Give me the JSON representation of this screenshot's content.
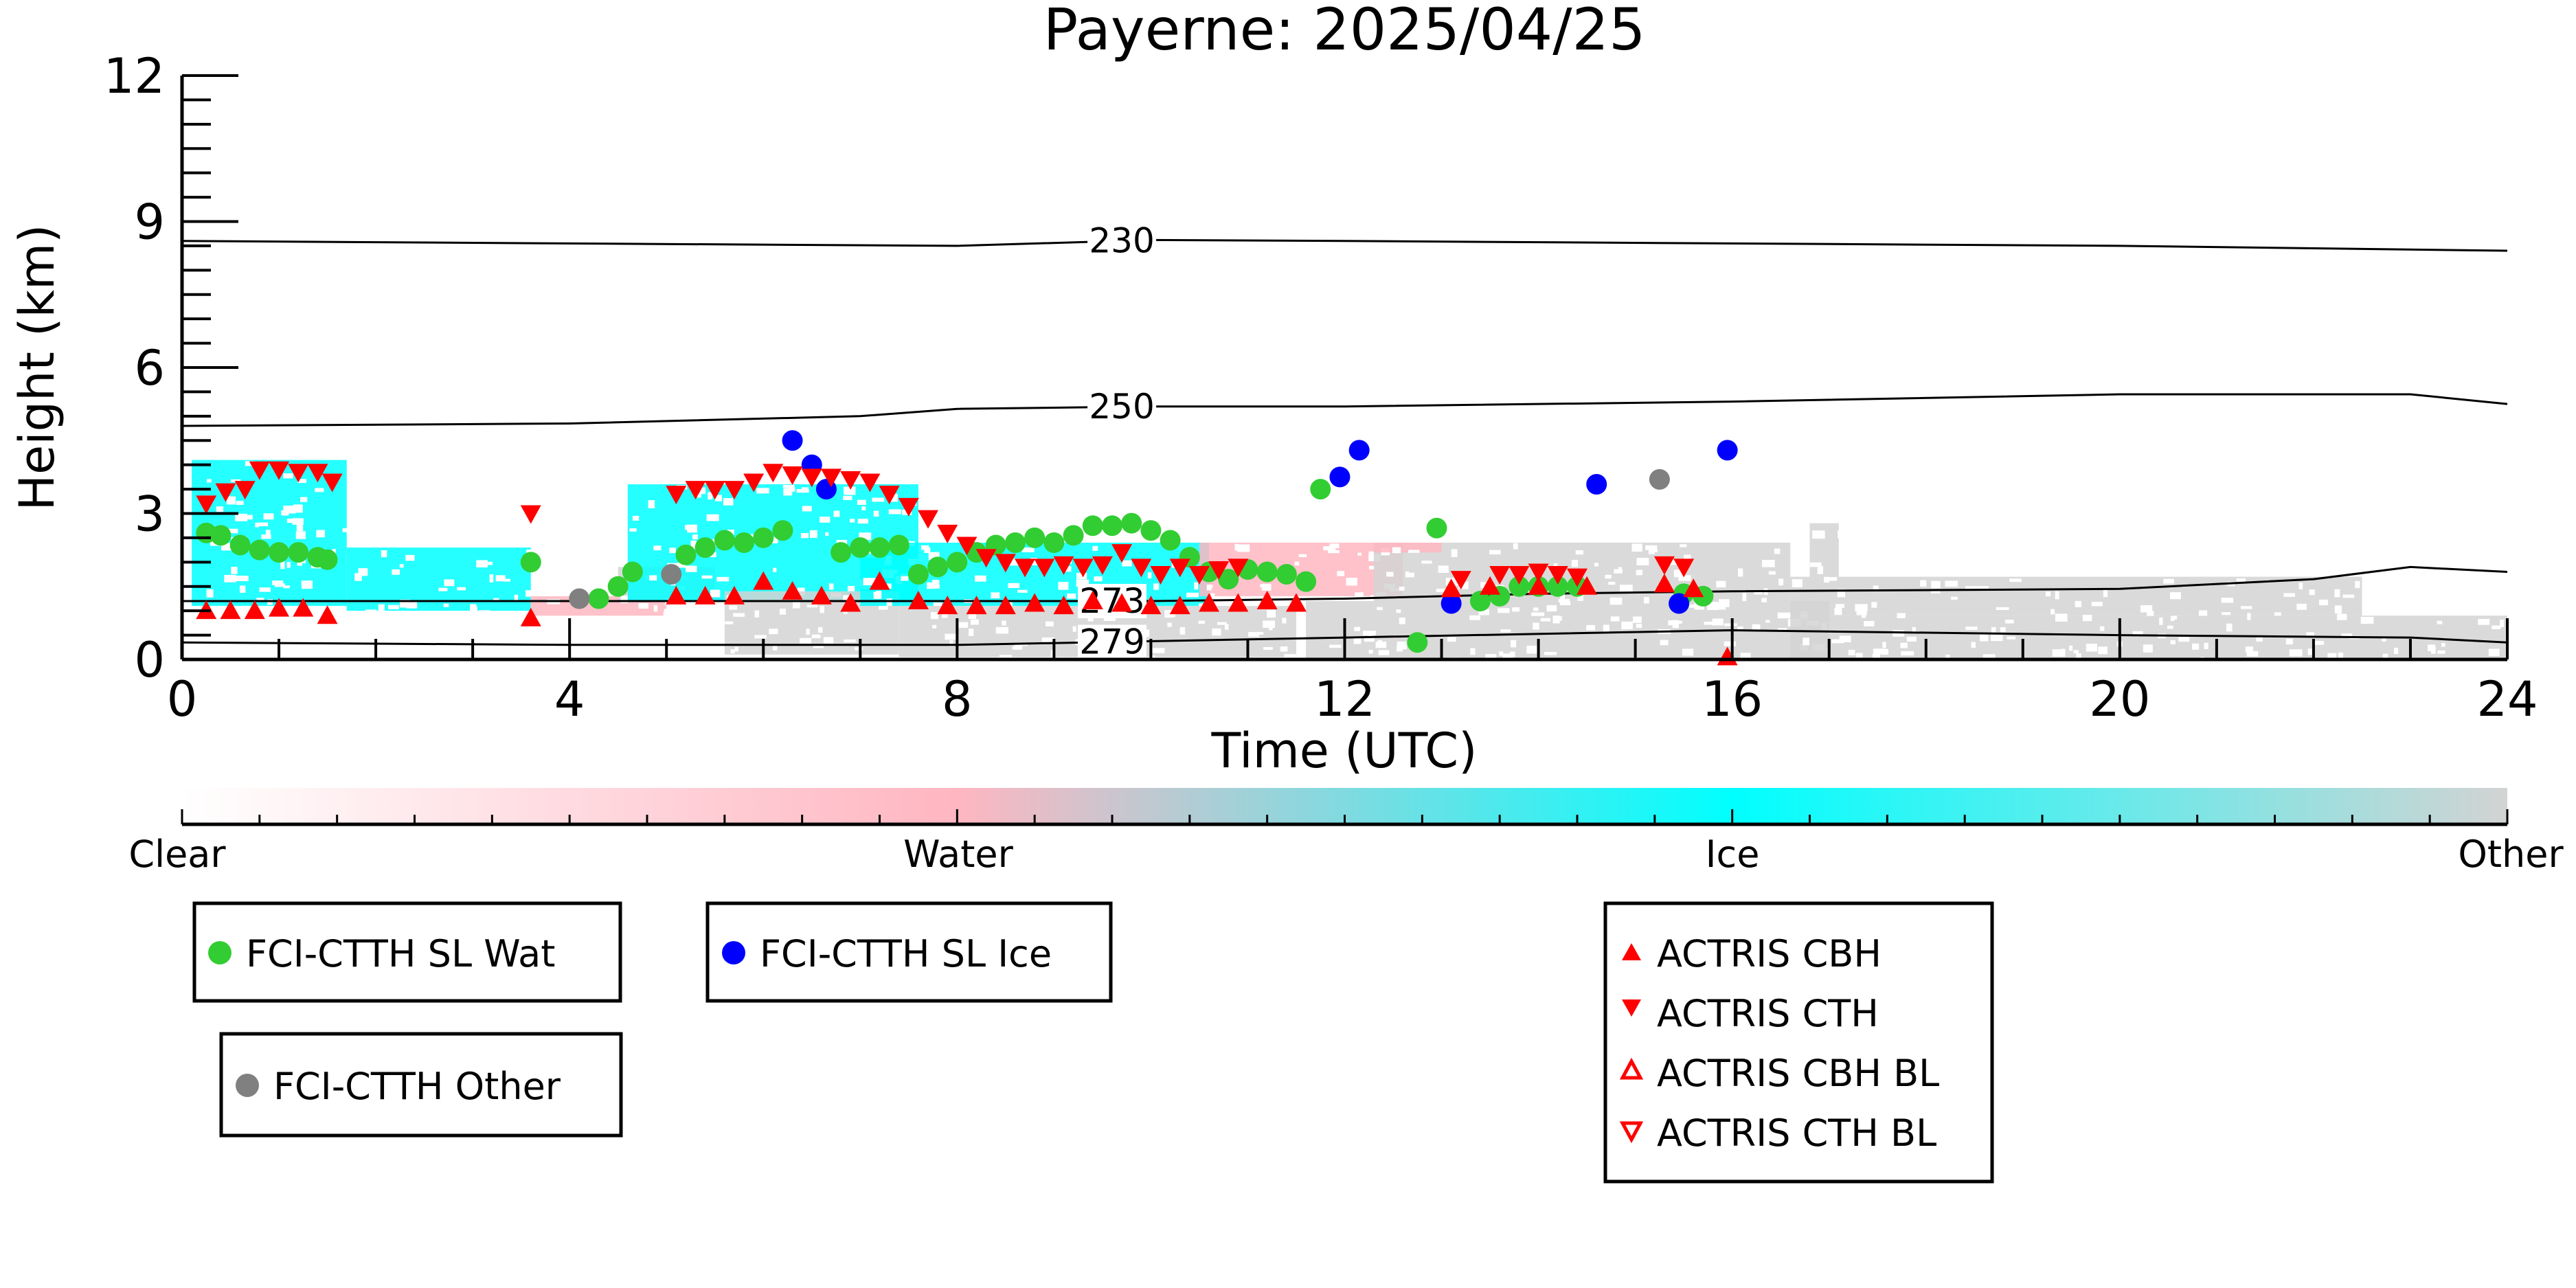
{
  "chart_data": {
    "type": "scatter",
    "title": "Payerne: 2025/04/25",
    "xlabel": "Time (UTC)",
    "ylabel": "Height (km)",
    "xlim": [
      0,
      24
    ],
    "ylim": [
      0,
      12
    ],
    "xticks": [
      0,
      4,
      8,
      12,
      16,
      20,
      24
    ],
    "yticks": [
      0,
      3,
      6,
      9,
      12
    ],
    "colors": {
      "clear": "#ffffff",
      "water": "#ffb6c1",
      "ice": "#00ffff",
      "other": "#d3d3d3",
      "wat_marker": "#32cd32",
      "ice_marker": "#0000ff",
      "other_marker": "#808080",
      "actris": "#ff0000"
    },
    "colorbar": {
      "labels": [
        "Clear",
        "Water",
        "Ice",
        "Other"
      ]
    },
    "isotherms": [
      {
        "label": "230",
        "label_x": 9.7,
        "points": [
          [
            0,
            8.6
          ],
          [
            4,
            8.55
          ],
          [
            8,
            8.5
          ],
          [
            10,
            8.62
          ],
          [
            12,
            8.6
          ],
          [
            16,
            8.55
          ],
          [
            20,
            8.5
          ],
          [
            24,
            8.4
          ]
        ]
      },
      {
        "label": "250",
        "label_x": 9.7,
        "points": [
          [
            0,
            4.8
          ],
          [
            4,
            4.85
          ],
          [
            7,
            5.0
          ],
          [
            8,
            5.15
          ],
          [
            10,
            5.2
          ],
          [
            12,
            5.2
          ],
          [
            16,
            5.3
          ],
          [
            20,
            5.45
          ],
          [
            23,
            5.45
          ],
          [
            24,
            5.25
          ]
        ]
      },
      {
        "label": "273",
        "label_x": 9.6,
        "points": [
          [
            0,
            1.2
          ],
          [
            4,
            1.2
          ],
          [
            8,
            1.2
          ],
          [
            10,
            1.2
          ],
          [
            12,
            1.25
          ],
          [
            14,
            1.35
          ],
          [
            16,
            1.4
          ],
          [
            20,
            1.45
          ],
          [
            22,
            1.65
          ],
          [
            23,
            1.9
          ],
          [
            24,
            1.8
          ]
        ]
      },
      {
        "label": "279",
        "label_x": 9.6,
        "points": [
          [
            0,
            0.35
          ],
          [
            4,
            0.3
          ],
          [
            8,
            0.3
          ],
          [
            12,
            0.45
          ],
          [
            16,
            0.6
          ],
          [
            20,
            0.5
          ],
          [
            23,
            0.45
          ],
          [
            24,
            0.35
          ]
        ]
      }
    ],
    "regions": [
      {
        "class": "ice",
        "x0": 0.1,
        "x1": 1.7,
        "y0": 1.1,
        "y1": 4.1
      },
      {
        "class": "ice",
        "x0": 1.7,
        "x1": 3.6,
        "y0": 1.0,
        "y1": 2.3
      },
      {
        "class": "water",
        "x0": 3.6,
        "x1": 5.0,
        "y0": 0.9,
        "y1": 1.3
      },
      {
        "class": "other",
        "x0": 4.5,
        "x1": 5.5,
        "y0": 1.2,
        "y1": 1.9
      },
      {
        "class": "ice",
        "x0": 4.6,
        "x1": 7.6,
        "y0": 1.2,
        "y1": 3.6
      },
      {
        "class": "other",
        "x0": 5.6,
        "x1": 7.4,
        "y0": 0.1,
        "y1": 1.4
      },
      {
        "class": "ice",
        "x0": 7.0,
        "x1": 10.6,
        "y0": 1.1,
        "y1": 2.4
      },
      {
        "class": "other",
        "x0": 7.4,
        "x1": 11.5,
        "y0": 0.05,
        "y1": 1.1
      },
      {
        "class": "water",
        "x0": 10.5,
        "x1": 12.6,
        "y0": 1.3,
        "y1": 2.4
      },
      {
        "class": "other",
        "x0": 11.6,
        "x1": 17.0,
        "y0": 0.0,
        "y1": 1.2
      },
      {
        "class": "other",
        "x0": 12.3,
        "x1": 16.6,
        "y0": 1.2,
        "y1": 2.4
      },
      {
        "class": "water",
        "x0": 12.3,
        "x1": 13.0,
        "y0": 2.2,
        "y1": 2.4
      },
      {
        "class": "other",
        "x0": 16.6,
        "x1": 24.0,
        "y0": 0.0,
        "y1": 0.9
      },
      {
        "class": "other",
        "x0": 16.6,
        "x1": 22.5,
        "y0": 0.9,
        "y1": 1.7
      },
      {
        "class": "other",
        "x0": 16.8,
        "x1": 17.1,
        "y0": 1.7,
        "y1": 2.8
      }
    ],
    "series": [
      {
        "name": "FCI-CTTH SL Wat",
        "marker": "circle",
        "color": "#32cd32",
        "points": [
          [
            0.25,
            2.6
          ],
          [
            0.4,
            2.55
          ],
          [
            0.6,
            2.35
          ],
          [
            0.8,
            2.25
          ],
          [
            1.0,
            2.2
          ],
          [
            1.2,
            2.2
          ],
          [
            1.4,
            2.1
          ],
          [
            1.5,
            2.05
          ],
          [
            3.6,
            2.0
          ],
          [
            4.3,
            1.25
          ],
          [
            4.5,
            1.5
          ],
          [
            4.65,
            1.8
          ],
          [
            5.2,
            2.15
          ],
          [
            5.4,
            2.3
          ],
          [
            5.6,
            2.45
          ],
          [
            5.8,
            2.4
          ],
          [
            6.0,
            2.5
          ],
          [
            6.2,
            2.65
          ],
          [
            6.8,
            2.2
          ],
          [
            7.0,
            2.3
          ],
          [
            7.2,
            2.3
          ],
          [
            7.4,
            2.35
          ],
          [
            7.6,
            1.75
          ],
          [
            7.8,
            1.9
          ],
          [
            8.0,
            2.0
          ],
          [
            8.2,
            2.2
          ],
          [
            8.4,
            2.35
          ],
          [
            8.6,
            2.4
          ],
          [
            8.8,
            2.5
          ],
          [
            9.0,
            2.4
          ],
          [
            9.2,
            2.55
          ],
          [
            9.4,
            2.75
          ],
          [
            9.6,
            2.75
          ],
          [
            9.8,
            2.8
          ],
          [
            10.0,
            2.65
          ],
          [
            10.2,
            2.45
          ],
          [
            10.4,
            2.1
          ],
          [
            10.6,
            1.8
          ],
          [
            10.8,
            1.65
          ],
          [
            11.0,
            1.85
          ],
          [
            11.2,
            1.8
          ],
          [
            11.4,
            1.75
          ],
          [
            11.6,
            1.6
          ],
          [
            11.75,
            3.5
          ],
          [
            12.75,
            0.35
          ],
          [
            12.95,
            2.7
          ],
          [
            13.4,
            1.2
          ],
          [
            13.6,
            1.3
          ],
          [
            13.8,
            1.5
          ],
          [
            14.0,
            1.5
          ],
          [
            14.2,
            1.5
          ],
          [
            14.4,
            1.5
          ],
          [
            15.5,
            1.35
          ],
          [
            15.7,
            1.3
          ]
        ]
      },
      {
        "name": "FCI-CTTH SL Ice",
        "marker": "circle",
        "color": "#0000ff",
        "points": [
          [
            6.3,
            4.5
          ],
          [
            6.5,
            4.0
          ],
          [
            6.65,
            3.5
          ],
          [
            11.95,
            3.75
          ],
          [
            12.15,
            4.3
          ],
          [
            13.1,
            1.15
          ],
          [
            14.6,
            3.6
          ],
          [
            15.45,
            1.15
          ],
          [
            15.95,
            4.3
          ]
        ]
      },
      {
        "name": "FCI-CTTH Other",
        "marker": "circle",
        "color": "#808080",
        "points": [
          [
            4.1,
            1.25
          ],
          [
            5.05,
            1.75
          ],
          [
            15.25,
            3.7
          ]
        ]
      },
      {
        "name": "ACTRIS CBH",
        "marker": "triangle-up",
        "color": "#ff0000",
        "points": [
          [
            0.25,
            1.0
          ],
          [
            0.5,
            1.0
          ],
          [
            0.75,
            1.0
          ],
          [
            1.0,
            1.05
          ],
          [
            1.25,
            1.05
          ],
          [
            1.5,
            0.9
          ],
          [
            3.6,
            0.85
          ],
          [
            5.1,
            1.3
          ],
          [
            5.4,
            1.3
          ],
          [
            5.7,
            1.3
          ],
          [
            6.0,
            1.6
          ],
          [
            6.3,
            1.4
          ],
          [
            6.6,
            1.3
          ],
          [
            6.9,
            1.15
          ],
          [
            7.2,
            1.6
          ],
          [
            7.6,
            1.2
          ],
          [
            7.9,
            1.1
          ],
          [
            8.2,
            1.1
          ],
          [
            8.5,
            1.1
          ],
          [
            8.8,
            1.15
          ],
          [
            9.1,
            1.1
          ],
          [
            9.4,
            1.2
          ],
          [
            9.7,
            1.15
          ],
          [
            10.0,
            1.1
          ],
          [
            10.3,
            1.1
          ],
          [
            10.6,
            1.15
          ],
          [
            10.9,
            1.15
          ],
          [
            11.2,
            1.2
          ],
          [
            11.5,
            1.15
          ],
          [
            13.1,
            1.45
          ],
          [
            13.5,
            1.5
          ],
          [
            14.0,
            1.5
          ],
          [
            14.5,
            1.5
          ],
          [
            15.3,
            1.55
          ],
          [
            15.6,
            1.45
          ],
          [
            15.95,
            0.05
          ]
        ]
      },
      {
        "name": "ACTRIS CTH",
        "marker": "triangle-down",
        "color": "#ff0000",
        "points": [
          [
            0.25,
            3.2
          ],
          [
            0.45,
            3.45
          ],
          [
            0.65,
            3.5
          ],
          [
            0.8,
            3.9
          ],
          [
            1.0,
            3.9
          ],
          [
            1.2,
            3.85
          ],
          [
            1.4,
            3.85
          ],
          [
            1.55,
            3.65
          ],
          [
            3.6,
            3.0
          ],
          [
            5.1,
            3.4
          ],
          [
            5.3,
            3.5
          ],
          [
            5.5,
            3.5
          ],
          [
            5.7,
            3.5
          ],
          [
            5.9,
            3.65
          ],
          [
            6.1,
            3.85
          ],
          [
            6.3,
            3.8
          ],
          [
            6.5,
            3.75
          ],
          [
            6.7,
            3.75
          ],
          [
            6.9,
            3.7
          ],
          [
            7.1,
            3.65
          ],
          [
            7.3,
            3.4
          ],
          [
            7.5,
            3.15
          ],
          [
            7.7,
            2.9
          ],
          [
            7.9,
            2.6
          ],
          [
            8.1,
            2.35
          ],
          [
            8.3,
            2.1
          ],
          [
            8.5,
            2.0
          ],
          [
            8.7,
            1.9
          ],
          [
            8.9,
            1.9
          ],
          [
            9.1,
            1.95
          ],
          [
            9.3,
            1.9
          ],
          [
            9.5,
            1.95
          ],
          [
            9.7,
            2.2
          ],
          [
            9.9,
            1.9
          ],
          [
            10.1,
            1.75
          ],
          [
            10.3,
            1.9
          ],
          [
            10.5,
            1.75
          ],
          [
            10.7,
            1.85
          ],
          [
            10.9,
            1.9
          ],
          [
            13.2,
            1.65
          ],
          [
            13.6,
            1.75
          ],
          [
            13.8,
            1.75
          ],
          [
            14.0,
            1.8
          ],
          [
            14.2,
            1.75
          ],
          [
            14.4,
            1.7
          ],
          [
            15.3,
            1.95
          ],
          [
            15.5,
            1.9
          ]
        ]
      },
      {
        "name": "ACTRIS CBH BL",
        "marker": "triangle-up-open",
        "color": "#ff0000",
        "points": []
      },
      {
        "name": "ACTRIS CTH BL",
        "marker": "triangle-down-open",
        "color": "#ff0000",
        "points": []
      }
    ]
  }
}
